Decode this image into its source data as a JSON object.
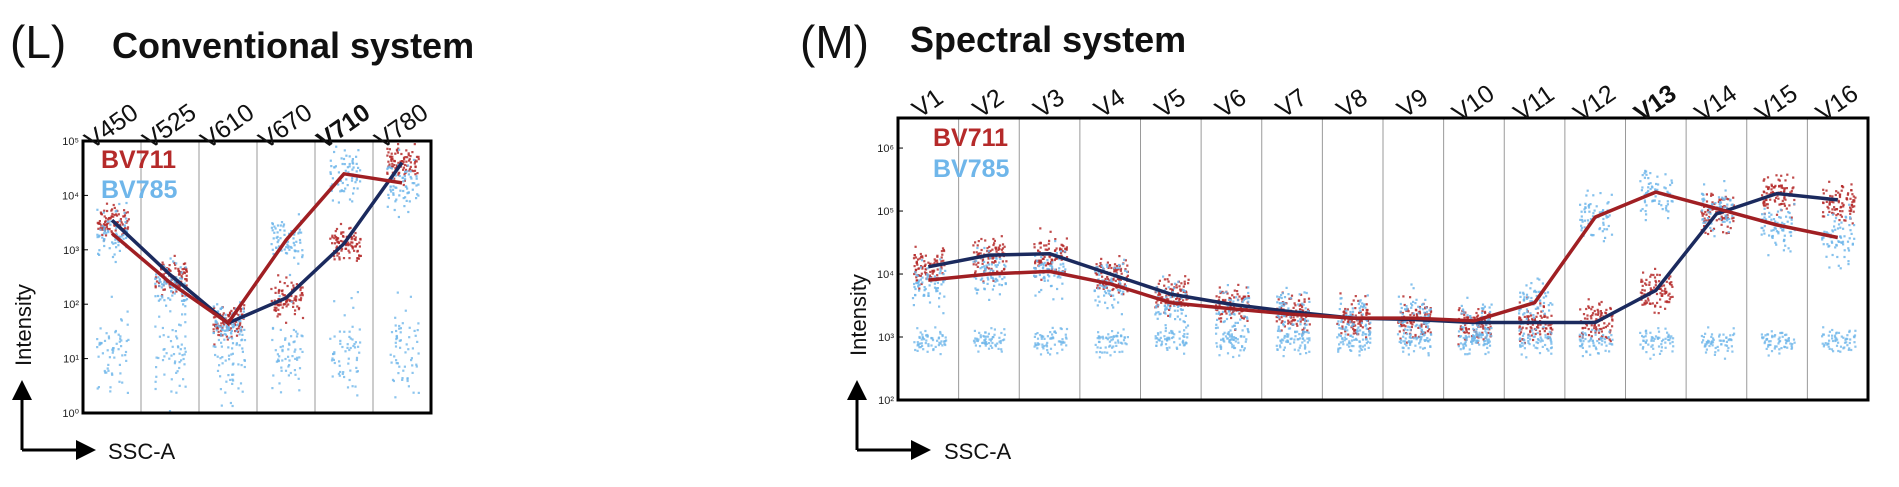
{
  "colors": {
    "bv711": "#b52a2a",
    "bv785": "#6fb6ea",
    "bv711_line": "#a01f23",
    "bv785_line": "#1b2a5e"
  },
  "chart_data": [
    {
      "type": "scatter",
      "panel_label": "(L)",
      "title": "Conventional system",
      "categories": [
        "V450",
        "V525",
        "V610",
        "V670",
        "V710",
        "V780"
      ],
      "highlight_category": "V710",
      "ylabel": "Intensity",
      "xlabel": "SSC-A",
      "yscale": "log",
      "ylim": [
        1,
        100000
      ],
      "ytick_labels": [
        "10⁰",
        "10¹",
        "10²",
        "10³",
        "10⁴",
        "10⁵"
      ],
      "grid": "vertical separators between channels",
      "legend": "top-left",
      "series": [
        {
          "name": "BV711",
          "values": [
            2000,
            250,
            45,
            1500,
            25000,
            17000
          ]
        },
        {
          "name": "BV785",
          "values": [
            3500,
            350,
            45,
            130,
            1300,
            40000
          ]
        }
      ]
    },
    {
      "type": "scatter",
      "panel_label": "(M)",
      "title": "Spectral system",
      "categories": [
        "V1",
        "V2",
        "V3",
        "V4",
        "V5",
        "V6",
        "V7",
        "V8",
        "V9",
        "V10",
        "V11",
        "V12",
        "V13",
        "V14",
        "V15",
        "V16"
      ],
      "highlight_category": "V13",
      "ylabel": "Intensity",
      "xlabel": "SSC-A",
      "yscale": "log",
      "ylim": [
        100,
        3000000
      ],
      "ytick_labels": [
        "10²",
        "10³",
        "10⁴",
        "10⁵",
        "10⁶"
      ],
      "grid": "vertical separators between channels",
      "legend": "top-left",
      "series": [
        {
          "name": "BV711",
          "values": [
            8000,
            10000,
            11000,
            7000,
            3500,
            2800,
            2300,
            2000,
            2000,
            1800,
            3500,
            80000,
            200000,
            110000,
            60000,
            38000
          ]
        },
        {
          "name": "BV785",
          "values": [
            13000,
            20000,
            21000,
            10000,
            4800,
            3300,
            2500,
            2000,
            1900,
            1700,
            1700,
            1700,
            5500,
            90000,
            190000,
            150000
          ]
        }
      ]
    }
  ]
}
